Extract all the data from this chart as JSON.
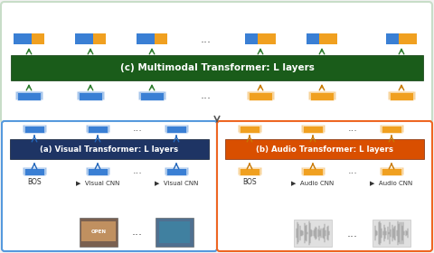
{
  "bg_color": "#f2f2f2",
  "multimodal_box_color": "#1a5c1a",
  "multimodal_text": "(c) Multimodal Transformer: L layers",
  "multimodal_text_color": "#ffffff",
  "visual_box_color": "#1e3464",
  "visual_text": "(a) Visual Transformer: L layers",
  "visual_text_color": "#ffffff",
  "audio_box_color": "#d94f00",
  "audio_text": "(b) Audio Transformer: L layers",
  "audio_text_color": "#ffffff",
  "blue_color": "#3a7fd4",
  "orange_color": "#f0a020",
  "green_arrow": "#2a7a2a",
  "orange_arrow": "#c87800",
  "blue_arrow": "#2266bb",
  "outer_border": "#c8ddc8",
  "vis_border": "#5599dd",
  "aud_border": "#ee6622"
}
